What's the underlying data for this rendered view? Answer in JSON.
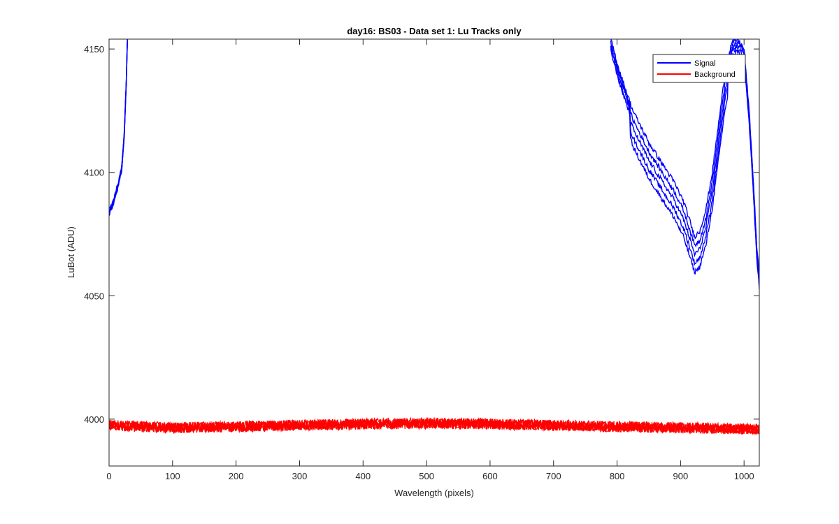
{
  "chart_data": {
    "type": "line",
    "title": "day16: BS03 - Data set 1: Lu Tracks only",
    "xlabel": "Wavelength (pixels)",
    "ylabel": "LuBot (ADU)",
    "xlim": [
      0,
      1024
    ],
    "ylim": [
      3981,
      4154
    ],
    "xticks": [
      0,
      100,
      200,
      300,
      400,
      500,
      600,
      700,
      800,
      900,
      1000
    ],
    "yticks": [
      4000,
      4050,
      4100,
      4150
    ],
    "grid": false,
    "legend_position": "top-right",
    "series": [
      {
        "name": "Signal",
        "color": "#0000ff",
        "tracks": 5,
        "left_segment": [
          [
            0,
            4083
          ],
          [
            5,
            4086
          ],
          [
            10,
            4090
          ],
          [
            15,
            4095
          ],
          [
            20,
            4101
          ],
          [
            24,
            4115
          ],
          [
            27,
            4135
          ],
          [
            29,
            4154
          ]
        ],
        "right_segment": [
          [
            790,
            4154
          ],
          [
            805,
            4140
          ],
          [
            825,
            4125
          ],
          [
            850,
            4112
          ],
          [
            870,
            4104
          ],
          [
            890,
            4096
          ],
          [
            905,
            4088
          ],
          [
            915,
            4080
          ],
          [
            922,
            4074
          ],
          [
            930,
            4076
          ],
          [
            940,
            4085
          ],
          [
            950,
            4100
          ],
          [
            960,
            4120
          ],
          [
            970,
            4140
          ],
          [
            980,
            4152
          ],
          [
            990,
            4154
          ],
          [
            1000,
            4150
          ],
          [
            1008,
            4125
          ],
          [
            1015,
            4095
          ],
          [
            1020,
            4070
          ],
          [
            1024,
            4058
          ]
        ],
        "track_offsets": [
          0,
          4,
          8,
          12,
          16
        ]
      },
      {
        "name": "Background",
        "color": "#ff0000",
        "tracks": 5,
        "mean_profile": [
          [
            0,
            3997.5
          ],
          [
            100,
            3996.5
          ],
          [
            200,
            3997
          ],
          [
            300,
            3997.5
          ],
          [
            400,
            3998
          ],
          [
            500,
            3998.3
          ],
          [
            600,
            3998
          ],
          [
            700,
            3997.5
          ],
          [
            800,
            3997
          ],
          [
            900,
            3996.5
          ],
          [
            1024,
            3996
          ]
        ],
        "noise_amplitude": 2.2
      }
    ]
  }
}
